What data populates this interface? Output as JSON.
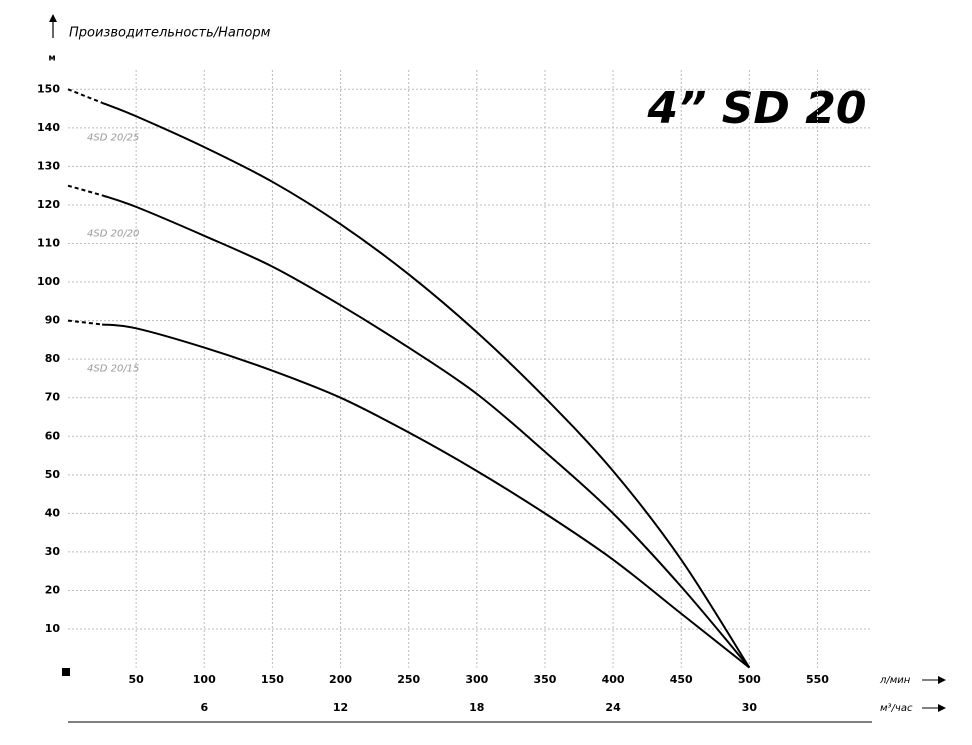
{
  "chart_data": {
    "type": "line",
    "title": "4” SD 20",
    "y_title": "Производительность/Напорм",
    "y_unit": "м",
    "x_label": "л/мин",
    "x2_label": "м³/час",
    "xlim": [
      0,
      590
    ],
    "xticks": [
      50,
      100,
      150,
      200,
      250,
      300,
      350,
      400,
      450,
      500,
      550
    ],
    "x2lim": [
      0,
      35.4
    ],
    "x2ticks": [
      6,
      12,
      18,
      24,
      30
    ],
    "ylim": [
      0,
      155
    ],
    "yticks": [
      10,
      20,
      30,
      40,
      50,
      60,
      70,
      80,
      90,
      100,
      110,
      120,
      130,
      140,
      150
    ],
    "grid": true,
    "x": [
      0,
      25,
      50,
      100,
      150,
      200,
      250,
      300,
      350,
      400,
      450,
      500
    ],
    "dashed_until_x": 25,
    "series": [
      {
        "name": "4SD 20/25",
        "color": "#000000",
        "values": [
          150,
          146.5,
          143,
          135,
          126,
          115,
          102,
          87,
          70,
          51,
          28,
          0
        ]
      },
      {
        "name": "4SD 20/20",
        "color": "#000000",
        "values": [
          125,
          122.5,
          119.5,
          112,
          104,
          94,
          83,
          71,
          56,
          40,
          21,
          0
        ]
      },
      {
        "name": "4SD 20/15",
        "color": "#000000",
        "values": [
          90,
          89,
          88,
          83,
          77,
          70,
          61,
          51,
          40,
          28,
          14,
          0
        ]
      }
    ]
  }
}
